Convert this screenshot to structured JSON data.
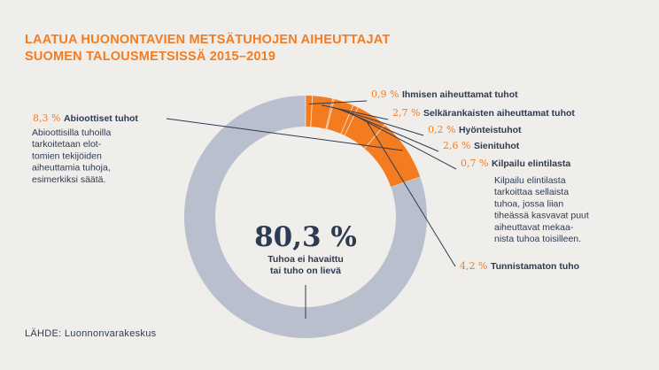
{
  "title": {
    "line1": "LAATUA HUONONTAVIEN METSÄTUHOJEN AIHEUTTAJAT",
    "line2": "SUOMEN TALOUSMETSISSÄ 2015–2019"
  },
  "source": "LÄHDE: Luonnonvarakeskus",
  "colors": {
    "orange": "#f47c20",
    "grey": "#b9bfcc",
    "text": "#2d3b52",
    "background": "#f0eeeb"
  },
  "chart_data": {
    "type": "pie",
    "variant": "donut",
    "slices": [
      {
        "pct_label": "8,3 %",
        "label": "Abioottiset tuhot",
        "value": 8.3,
        "color": "#f47c20",
        "description": [
          "Abioottisilla tuhoilla",
          "tarkoitetaan elot-",
          "tomien tekijöiden",
          "aiheuttamia tuhoja,",
          "esimerkiksi säätä."
        ]
      },
      {
        "pct_label": "0,9 %",
        "label": "Ihmisen aiheuttamat tuhot",
        "value": 0.9,
        "color": "#f47c20"
      },
      {
        "pct_label": "2,7 %",
        "label": "Selkärankaisten aiheuttamat tuhot",
        "value": 2.7,
        "color": "#f47c20"
      },
      {
        "pct_label": "0,2 %",
        "label": "Hyönteistuhot",
        "value": 0.2,
        "color": "#f47c20"
      },
      {
        "pct_label": "2,6 %",
        "label": "Sienituhot",
        "value": 2.6,
        "color": "#f47c20"
      },
      {
        "pct_label": "0,7 %",
        "label": "Kilpailu elintilasta",
        "value": 0.7,
        "color": "#f47c20",
        "description": [
          "Kilpailu elintilasta",
          "tarkoittaa sellaista",
          "tuhoa, jossa liian",
          "tiheässä kasvavat puut",
          "aiheuttavat mekaa-",
          "nista tuhoa toisilleen."
        ]
      },
      {
        "pct_label": "4,2 %",
        "label": "Tunnistamaton tuho",
        "value": 4.2,
        "color": "#f47c20"
      },
      {
        "pct_label": "80,3 %",
        "label": "Tuhoa ei havaittu tai tuho on lievä",
        "value": 80.3,
        "color": "#b9bfcc",
        "caption": [
          "Tuhoa ei havaittu",
          "tai tuho on lievä"
        ]
      }
    ],
    "slice_order_clockwise_from_top": [
      7,
      1,
      2,
      3,
      4,
      5,
      6,
      0
    ]
  }
}
